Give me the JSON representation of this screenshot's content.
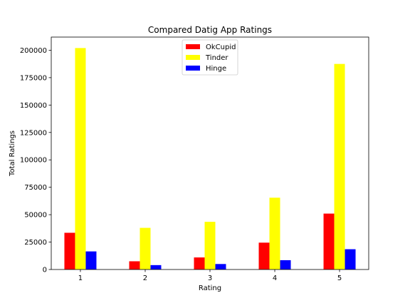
{
  "chart_data": {
    "type": "bar",
    "title": "Compared Datig App Ratings",
    "xlabel": "Rating",
    "ylabel": "Total Ratings",
    "categories": [
      "1",
      "2",
      "3",
      "4",
      "5"
    ],
    "ylim": [
      0,
      212000
    ],
    "yticks": [
      0,
      25000,
      50000,
      75000,
      100000,
      125000,
      150000,
      175000,
      200000
    ],
    "ytick_labels": [
      "0",
      "25000",
      "50000",
      "75000",
      "100000",
      "125000",
      "150000",
      "175000",
      "200000"
    ],
    "grid": false,
    "legend_position": "top-center",
    "series": [
      {
        "name": "OkCupid",
        "color": "#ff0000",
        "values": [
          33500,
          7500,
          11000,
          24500,
          51000
        ]
      },
      {
        "name": "Tinder",
        "color": "#ffff00",
        "values": [
          202000,
          38000,
          43500,
          65500,
          187500
        ]
      },
      {
        "name": "Hinge",
        "color": "#0000ff",
        "values": [
          16500,
          4000,
          5000,
          8500,
          18500
        ]
      }
    ]
  }
}
